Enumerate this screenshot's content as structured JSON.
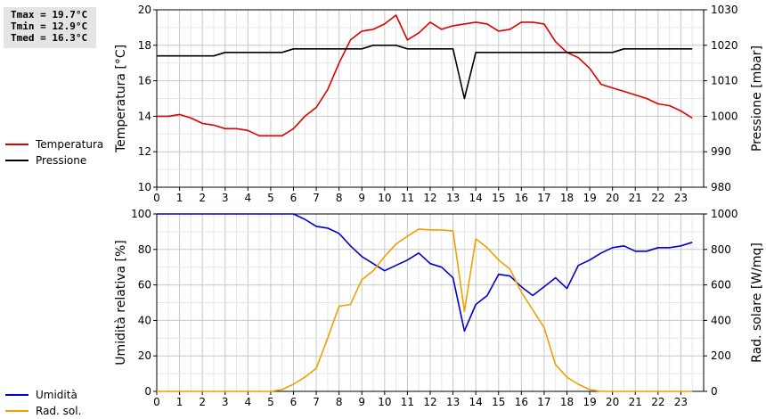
{
  "stats": {
    "tmax": "Tmax = 19.7°C",
    "tmin": "Tmin = 12.9°C",
    "tmed": "Tmed = 16.3°C"
  },
  "legend_top": [
    {
      "label": "Temperatura",
      "color": "#dd0000"
    },
    {
      "label": "Pressione",
      "color": "#000000"
    }
  ],
  "legend_bottom": [
    {
      "label": "Umidità",
      "color": "#0000cc"
    },
    {
      "label": "Rad. sol.",
      "color": "#f0a000"
    }
  ],
  "chart_data": [
    {
      "type": "line",
      "xlim": [
        0,
        24
      ],
      "xticks": [
        0,
        1,
        2,
        3,
        4,
        5,
        6,
        7,
        8,
        9,
        10,
        11,
        12,
        13,
        14,
        15,
        16,
        17,
        18,
        19,
        20,
        21,
        22,
        23
      ],
      "ylabel": "Temperatura [°C]",
      "ylim": [
        10,
        20
      ],
      "yticks": [
        10,
        12,
        14,
        16,
        18,
        20
      ],
      "y2label": "Pressione [mbar]",
      "y2lim": [
        980,
        1030
      ],
      "y2ticks": [
        980,
        990,
        1000,
        1010,
        1020,
        1030
      ],
      "grid": true,
      "series": [
        {
          "name": "Temperatura",
          "axis": "left",
          "color": "#dd0000",
          "x": [
            0,
            0.5,
            1,
            1.5,
            2,
            2.5,
            3,
            3.5,
            4,
            4.5,
            5,
            5.5,
            6,
            6.5,
            7,
            7.5,
            8,
            8.5,
            9,
            9.5,
            10,
            10.5,
            11,
            11.5,
            12,
            12.5,
            13,
            13.5,
            14,
            14.5,
            15,
            15.5,
            16,
            16.5,
            17,
            17.5,
            18,
            18.5,
            19,
            19.5,
            20,
            20.5,
            21,
            21.5,
            22,
            22.5,
            23,
            23.5
          ],
          "values": [
            14.0,
            14.0,
            14.1,
            13.9,
            13.6,
            13.5,
            13.3,
            13.3,
            13.2,
            12.9,
            12.9,
            12.9,
            13.3,
            14.0,
            14.5,
            15.5,
            17.0,
            18.3,
            18.8,
            18.9,
            19.2,
            19.7,
            18.3,
            18.7,
            19.3,
            18.9,
            19.1,
            19.2,
            19.3,
            19.2,
            18.8,
            18.9,
            19.3,
            19.3,
            19.2,
            18.2,
            17.6,
            17.3,
            16.7,
            15.8,
            15.6,
            15.4,
            15.2,
            15.0,
            14.7,
            14.6,
            14.3,
            13.9
          ]
        },
        {
          "name": "Pressione",
          "axis": "right",
          "color": "#000000",
          "x": [
            0,
            0.5,
            1,
            1.5,
            2,
            2.5,
            3,
            3.5,
            4,
            4.5,
            5,
            5.5,
            6,
            6.5,
            7,
            7.5,
            8,
            8.5,
            9,
            9.5,
            10,
            10.5,
            11,
            11.5,
            12,
            12.5,
            13,
            13.5,
            14,
            14.5,
            15,
            15.5,
            16,
            16.5,
            17,
            17.5,
            18,
            18.5,
            19,
            19.5,
            20,
            20.5,
            21,
            21.5,
            22,
            22.5,
            23,
            23.5
          ],
          "values": [
            1017,
            1017,
            1017,
            1017,
            1017,
            1017,
            1018,
            1018,
            1018,
            1018,
            1018,
            1018,
            1019,
            1019,
            1019,
            1019,
            1019,
            1019,
            1019,
            1020,
            1020,
            1020,
            1019,
            1019,
            1019,
            1019,
            1019,
            1005,
            1018,
            1018,
            1018,
            1018,
            1018,
            1018,
            1018,
            1018,
            1018,
            1018,
            1018,
            1018,
            1018,
            1019,
            1019,
            1019,
            1019,
            1019,
            1019,
            1019
          ]
        }
      ]
    },
    {
      "type": "line",
      "xlim": [
        0,
        24
      ],
      "xticks": [
        0,
        1,
        2,
        3,
        4,
        5,
        6,
        7,
        8,
        9,
        10,
        11,
        12,
        13,
        14,
        15,
        16,
        17,
        18,
        19,
        20,
        21,
        22,
        23
      ],
      "ylabel": "Umidità relativa [%]",
      "ylim": [
        0,
        100
      ],
      "yticks": [
        0,
        20,
        40,
        60,
        80,
        100
      ],
      "y2label": "Rad. solare [W/mq]",
      "y2lim": [
        0,
        1000
      ],
      "y2ticks": [
        0,
        200,
        400,
        600,
        800,
        1000
      ],
      "grid": true,
      "series": [
        {
          "name": "Umidità",
          "axis": "left",
          "color": "#0000cc",
          "x": [
            0,
            0.5,
            1,
            1.5,
            2,
            2.5,
            3,
            3.5,
            4,
            4.5,
            5,
            5.5,
            6,
            6.5,
            7,
            7.5,
            8,
            8.5,
            9,
            9.5,
            10,
            10.5,
            11,
            11.5,
            12,
            12.5,
            13,
            13.5,
            14,
            14.5,
            15,
            15.5,
            16,
            16.5,
            17,
            17.5,
            18,
            18.5,
            19,
            19.5,
            20,
            20.5,
            21,
            21.5,
            22,
            22.5,
            23,
            23.5
          ],
          "values": [
            100,
            100,
            100,
            100,
            100,
            100,
            100,
            100,
            100,
            100,
            100,
            100,
            100,
            97,
            93,
            92,
            89,
            82,
            76,
            72,
            68,
            71,
            74,
            78,
            72,
            70,
            64,
            34,
            49,
            54,
            66,
            65,
            59,
            54,
            59,
            64,
            58,
            71,
            74,
            78,
            81,
            82,
            79,
            79,
            81,
            81,
            82,
            84
          ]
        },
        {
          "name": "Rad. sol.",
          "axis": "right",
          "color": "#f0a000",
          "x": [
            0,
            0.5,
            1,
            1.5,
            2,
            2.5,
            3,
            3.5,
            4,
            4.5,
            5,
            5.5,
            6,
            6.5,
            7,
            7.5,
            8,
            8.5,
            9,
            9.5,
            10,
            10.5,
            11,
            11.5,
            12,
            12.5,
            13,
            13.5,
            14,
            14.5,
            15,
            15.5,
            16,
            16.5,
            17,
            17.5,
            18,
            18.5,
            19,
            19.5,
            20,
            20.5,
            21,
            21.5,
            22,
            22.5,
            23,
            23.5
          ],
          "values": [
            0,
            0,
            0,
            0,
            0,
            0,
            0,
            0,
            0,
            0,
            0,
            10,
            40,
            80,
            130,
            300,
            480,
            490,
            630,
            680,
            760,
            830,
            875,
            915,
            910,
            910,
            905,
            450,
            860,
            810,
            740,
            690,
            560,
            460,
            360,
            150,
            80,
            40,
            10,
            0,
            0,
            0,
            0,
            0,
            0,
            0,
            0,
            0
          ]
        }
      ]
    }
  ]
}
